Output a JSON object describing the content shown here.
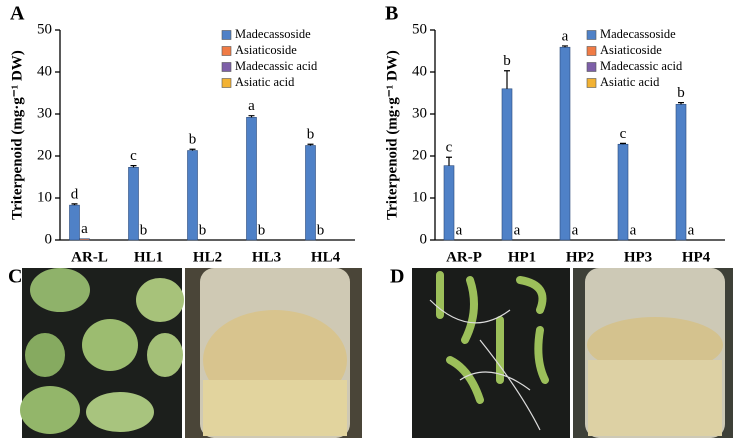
{
  "chart_data": [
    {
      "type": "bar",
      "panel_label": "A",
      "y_label": "Triterpenoid (mg·g⁻¹ DW)",
      "categories": [
        "AR-L",
        "HL1",
        "HL2",
        "HL3",
        "HL4"
      ],
      "series": [
        {
          "name": "Madecassoside",
          "color": "#4f81c7",
          "values": [
            8.3,
            17.3,
            21.3,
            29.2,
            22.5
          ],
          "errors": [
            0.3,
            0.4,
            0.3,
            0.4,
            0.3
          ],
          "letters": [
            "d",
            "c",
            "b",
            "a",
            "b"
          ]
        },
        {
          "name": "Asiaticoside",
          "color": "#f07b45",
          "values": [
            0.3,
            0,
            0,
            0,
            0
          ],
          "letters": [
            "a",
            "b",
            "b",
            "b",
            "b"
          ]
        },
        {
          "name": "Madecassic acid",
          "color": "#7d5fa8",
          "values": [
            0,
            0,
            0,
            0,
            0
          ]
        },
        {
          "name": "Asiatic acid",
          "color": "#f2b233",
          "values": [
            0,
            0,
            0,
            0,
            0
          ]
        }
      ],
      "ylim": [
        0,
        50
      ],
      "yticks": [
        0,
        10,
        20,
        30,
        40,
        50
      ]
    },
    {
      "type": "bar",
      "panel_label": "B",
      "y_label": "Triterpenoid (mg·g⁻¹ DW)",
      "categories": [
        "AR-P",
        "HP1",
        "HP2",
        "HP3",
        "HP4"
      ],
      "series": [
        {
          "name": "Madecassoside",
          "color": "#4f81c7",
          "values": [
            17.7,
            36.0,
            45.9,
            22.8,
            32.3
          ],
          "errors": [
            2.0,
            4.3,
            0.3,
            0.2,
            0.4
          ],
          "letters": [
            "c",
            "b",
            "a",
            "c",
            "b"
          ]
        },
        {
          "name": "Asiaticoside",
          "color": "#f07b45",
          "values": [
            0,
            0,
            0,
            0,
            0
          ],
          "letters": [
            "a",
            "a",
            "a",
            "a",
            "a"
          ]
        },
        {
          "name": "Madecassic acid",
          "color": "#7d5fa8",
          "values": [
            0,
            0,
            0,
            0,
            0
          ]
        },
        {
          "name": "Asiatic acid",
          "color": "#f2b233",
          "values": [
            0,
            0,
            0,
            0,
            0
          ]
        }
      ],
      "ylim": [
        0,
        50
      ],
      "yticks": [
        0,
        10,
        20,
        30,
        40,
        50
      ]
    }
  ],
  "photo_panels": [
    {
      "label": "C"
    },
    {
      "label": "D"
    }
  ]
}
